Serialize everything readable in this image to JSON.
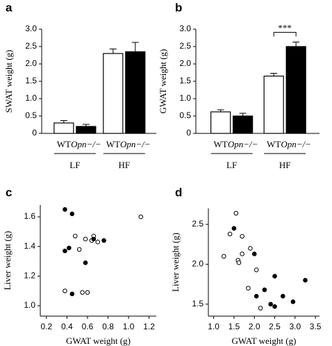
{
  "chart_data": [
    {
      "type": "bar",
      "panel": "a",
      "ylabel": "SWAT weight (g)",
      "groups": [
        "LF",
        "HF"
      ],
      "series": [
        {
          "name": "WT",
          "color": "#ffffff",
          "values": [
            0.3,
            2.3
          ],
          "errors": [
            0.07,
            0.13
          ]
        },
        {
          "name": "Opn−/−",
          "color": "#000000",
          "values": [
            0.2,
            2.35
          ],
          "errors": [
            0.06,
            0.27
          ]
        }
      ],
      "ylim": [
        0,
        3
      ],
      "yticks": [
        0,
        0.5,
        {
          "value": 1,
          "label": "1.0"
        },
        1.5,
        {
          "value": 2,
          "label": "2.0"
        },
        2.5,
        {
          "value": 3,
          "label": "3.0"
        }
      ]
    },
    {
      "type": "bar",
      "panel": "b",
      "ylabel": "GWAT weight (g)",
      "groups": [
        "LF",
        "HF"
      ],
      "series": [
        {
          "name": "WT",
          "color": "#ffffff",
          "values": [
            0.62,
            1.65
          ],
          "errors": [
            0.06,
            0.08
          ]
        },
        {
          "name": "Opn−/−",
          "color": "#000000",
          "values": [
            0.5,
            2.5
          ],
          "errors": [
            0.08,
            0.13
          ]
        }
      ],
      "annotation": "***",
      "ylim": [
        0,
        3
      ],
      "yticks": [
        0,
        0.5,
        {
          "value": 1,
          "label": "1.0"
        },
        1.5,
        {
          "value": 2,
          "label": "2.0"
        },
        2.5,
        {
          "value": 3,
          "label": "3.0"
        }
      ]
    },
    {
      "type": "scatter",
      "panel": "c",
      "xlabel": "GWAT weight (g)",
      "ylabel": "Liver weight (g)",
      "series": [
        {
          "color": "#ffffff",
          "x": [
            0.48,
            0.52,
            0.58,
            0.66,
            0.7,
            1.12,
            0.38,
            0.55,
            0.6,
            0.64
          ],
          "values": [
            1.47,
            1.38,
            1.45,
            1.47,
            1.43,
            1.6,
            1.1,
            1.09,
            1.09,
            1.44
          ]
        },
        {
          "color": "#000000",
          "x": [
            0.38,
            0.45,
            0.42,
            0.38,
            0.58,
            0.66,
            0.76,
            0.45
          ],
          "values": [
            1.65,
            1.62,
            1.39,
            1.37,
            1.29,
            1.45,
            1.44,
            1.08
          ]
        }
      ],
      "xlim": [
        0.14,
        1.27
      ],
      "xticks": [
        0.2,
        0.4,
        0.6,
        0.8,
        {
          "value": 1,
          "label": "1.0"
        },
        1.2
      ],
      "ylim": [
        0.93,
        1.68
      ],
      "yticks": [
        {
          "value": 1,
          "label": "1.0"
        },
        1.2,
        1.4,
        1.6
      ]
    },
    {
      "type": "scatter",
      "panel": "d",
      "xlabel": "GWAT weight (g)",
      "ylabel": "Liver weight (g)",
      "series": [
        {
          "color": "#ffffff",
          "x": [
            1.25,
            1.4,
            1.55,
            1.6,
            1.62,
            1.7,
            1.7,
            1.85,
            2.05,
            2.15,
            1.9
          ],
          "values": [
            2.1,
            2.38,
            2.64,
            2.05,
            2.02,
            2.35,
            2.13,
            1.7,
            1.93,
            1.45,
            2.2
          ]
        },
        {
          "color": "#000000",
          "x": [
            1.5,
            2.0,
            2.05,
            2.25,
            2.4,
            2.5,
            2.5,
            2.7,
            2.95,
            3.25
          ],
          "values": [
            2.45,
            2.13,
            1.6,
            1.68,
            1.5,
            1.47,
            1.85,
            1.6,
            1.53,
            1.8
          ]
        }
      ],
      "xlim": [
        0.87,
        3.6
      ],
      "xticks": [
        {
          "value": 1,
          "label": "1.0"
        },
        1.5,
        {
          "value": 2,
          "label": "2.0"
        },
        2.5,
        {
          "value": 3,
          "label": "3.0"
        },
        3.5
      ],
      "ylim": [
        1.35,
        2.7
      ],
      "yticks": [
        1.5,
        {
          "value": 2,
          "label": "2.0"
        },
        2.5
      ]
    }
  ]
}
